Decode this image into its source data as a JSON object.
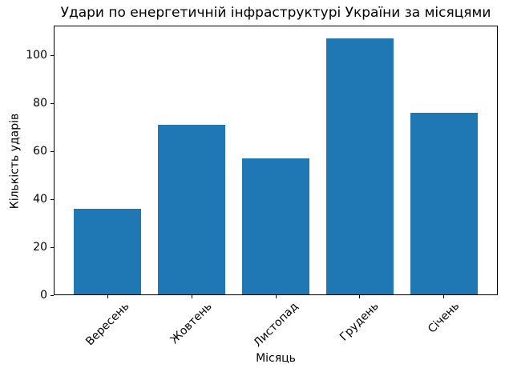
{
  "chart_data": {
    "type": "bar",
    "title": "Удари по енергетичній інфраструктурі України за місяцями",
    "xlabel": "Місяць",
    "ylabel": "Кількість ударів",
    "categories": [
      "Вересень",
      "Жовтень",
      "Листопад",
      "Грудень",
      "Січень"
    ],
    "values": [
      36,
      71,
      57,
      107,
      76
    ],
    "yticks": [
      0,
      20,
      40,
      60,
      80,
      100
    ],
    "ylim": [
      0,
      112.35
    ],
    "xlim": [
      -0.64,
      4.64
    ],
    "bar_width": 0.8,
    "bar_color": "#1f77b4",
    "axis_color": "#000000",
    "background_color": "#ffffff",
    "grid": false,
    "legend": null,
    "xtick_rotation_deg": 45
  }
}
